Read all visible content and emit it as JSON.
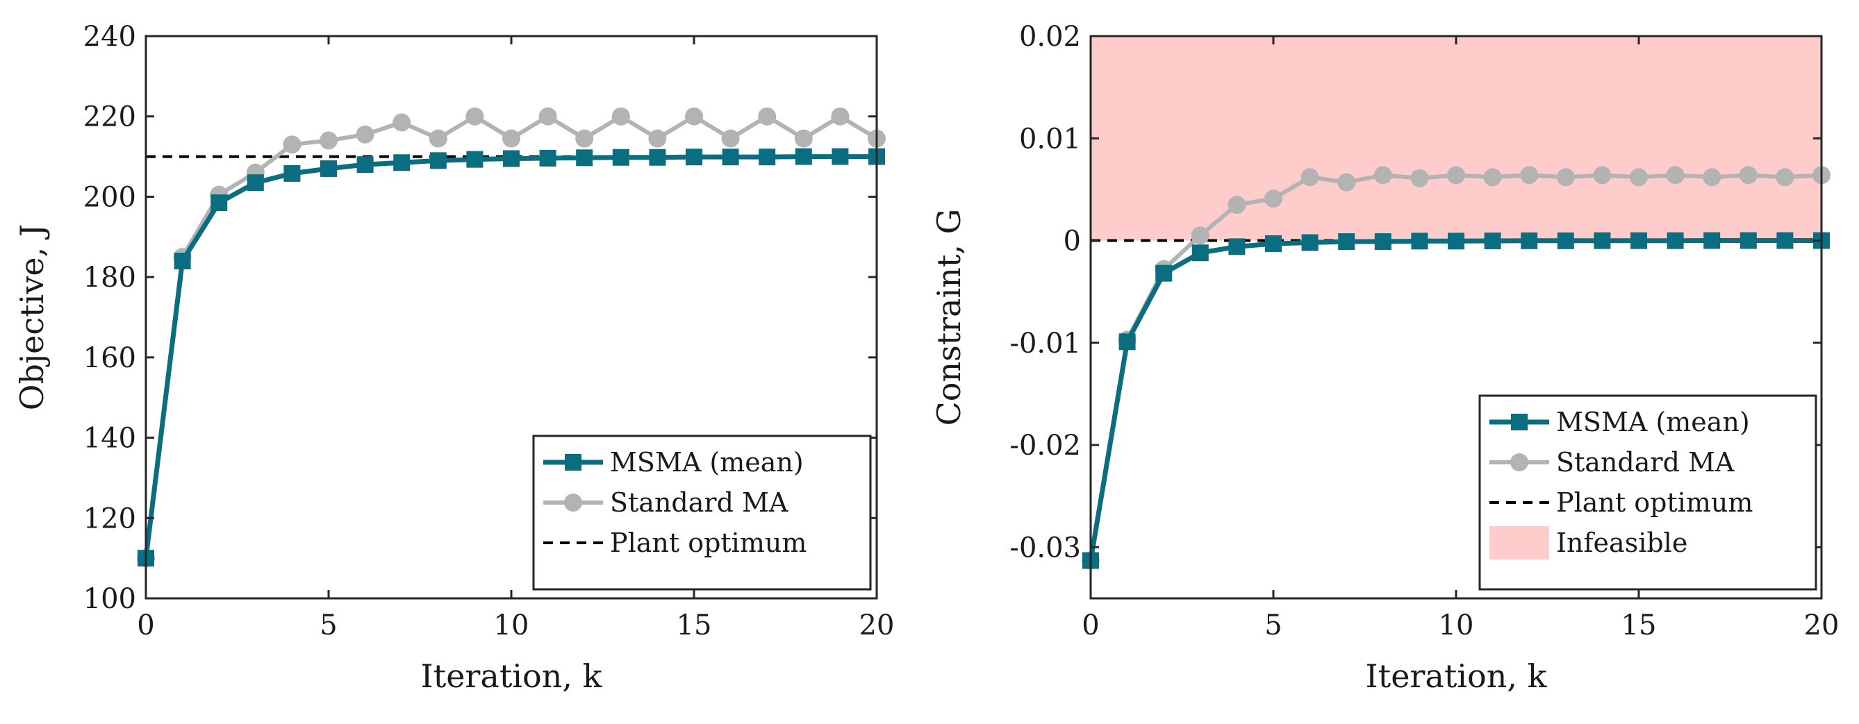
{
  "chart_data": [
    {
      "type": "line",
      "title": "",
      "xlabel": "Iteration, k",
      "ylabel": "Objective, J",
      "xlim": [
        0,
        20
      ],
      "ylim": [
        100,
        240
      ],
      "xticks": [
        0,
        5,
        10,
        15,
        20
      ],
      "yticks": [
        100,
        120,
        140,
        160,
        180,
        200,
        220,
        240
      ],
      "grid": false,
      "legend_position": "bottom-right",
      "x": [
        0,
        1,
        2,
        3,
        4,
        5,
        6,
        7,
        8,
        9,
        10,
        11,
        12,
        13,
        14,
        15,
        16,
        17,
        18,
        19,
        20
      ],
      "series": [
        {
          "name": "MSMA (mean)",
          "color": "#0b6e80",
          "marker": "square",
          "values": [
            110,
            184,
            198.5,
            203.5,
            205.8,
            207,
            208,
            208.5,
            209,
            209.3,
            209.5,
            209.6,
            209.7,
            209.8,
            209.8,
            209.9,
            209.9,
            209.9,
            210,
            210,
            210
          ]
        },
        {
          "name": "Standard MA",
          "color": "#b3b3b3",
          "marker": "circle",
          "values": [
            110,
            185,
            200.5,
            206,
            213,
            214,
            215.5,
            218.5,
            214.5,
            220,
            214.5,
            220,
            214.5,
            220,
            214.5,
            220,
            214.5,
            220,
            214.5,
            220,
            214.5
          ]
        }
      ],
      "reference_line": {
        "name": "Plant optimum",
        "y": 210,
        "style": "dashed",
        "color": "#000000"
      }
    },
    {
      "type": "line",
      "title": "",
      "xlabel": "Iteration, k",
      "ylabel": "Constraint, G",
      "xlim": [
        0,
        20
      ],
      "ylim": [
        -0.035,
        0.02
      ],
      "xticks": [
        0,
        5,
        10,
        15,
        20
      ],
      "yticks": [
        -0.03,
        -0.02,
        -0.01,
        0,
        0.01,
        0.02
      ],
      "ytick_labels": [
        "-0.03",
        "-0.02",
        "-0.01",
        "0",
        "0.01",
        "0.02"
      ],
      "grid": false,
      "legend_position": "bottom-right",
      "x": [
        0,
        1,
        2,
        3,
        4,
        5,
        6,
        7,
        8,
        9,
        10,
        11,
        12,
        13,
        14,
        15,
        16,
        17,
        18,
        19,
        20
      ],
      "series": [
        {
          "name": "MSMA (mean)",
          "color": "#0b6e80",
          "marker": "square",
          "values": [
            -0.0313,
            -0.0099,
            -0.0032,
            -0.0012,
            -0.0006,
            -0.0003,
            -0.0002,
            -0.0001,
            -0.0001,
            -5e-05,
            -5e-05,
            -3e-05,
            -2e-05,
            -2e-05,
            -1e-05,
            -1e-05,
            -1e-05,
            0,
            0,
            0,
            0
          ]
        },
        {
          "name": "Standard MA",
          "color": "#b3b3b3",
          "marker": "circle",
          "values": [
            -0.0313,
            -0.0097,
            -0.0028,
            0.0005,
            0.0035,
            0.0041,
            0.0062,
            0.0057,
            0.0064,
            0.0061,
            0.0064,
            0.0062,
            0.0064,
            0.0062,
            0.0064,
            0.0062,
            0.0064,
            0.0062,
            0.0064,
            0.0062,
            0.0064
          ]
        }
      ],
      "reference_line": {
        "name": "Plant optimum",
        "y": 0,
        "style": "dashed",
        "color": "#000000"
      },
      "shaded_region": {
        "name": "Infeasible",
        "y_from": 0,
        "y_to": 0.02,
        "color": "#ffcccc"
      }
    }
  ]
}
